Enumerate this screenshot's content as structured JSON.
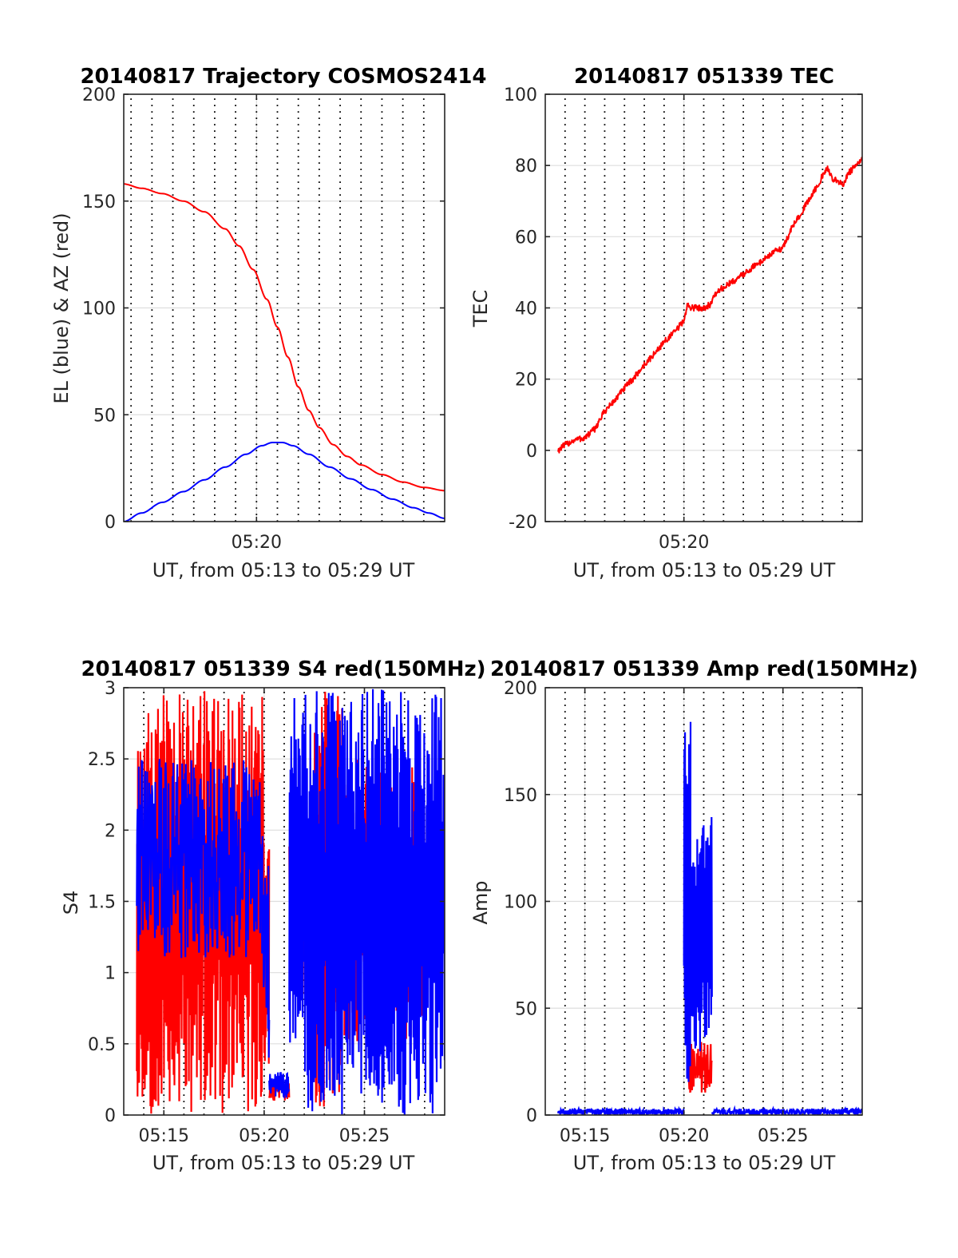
{
  "chart_data": [
    {
      "type": "line",
      "title": "20140817 Trajectory COSMOS2414",
      "xlabel": "UT, from 05:13 to 05:29 UT",
      "ylabel": "EL (blue) & AZ (red)",
      "xlim": [
        "05:13:39",
        "05:29:00"
      ],
      "ylim": [
        0,
        200
      ],
      "yticks": [
        0,
        50,
        100,
        150,
        200
      ],
      "xticks": [
        "05:20"
      ],
      "grid": true,
      "series": [
        {
          "color": "#ff0000",
          "points": [
            [
              "05:13:39",
              158
            ],
            [
              "05:14:30",
              156
            ],
            [
              "05:15:30",
              153.5
            ],
            [
              "05:16:30",
              150
            ],
            [
              "05:17:30",
              145
            ],
            [
              "05:18:30",
              137
            ],
            [
              "05:19:10",
              129
            ],
            [
              "05:19:50",
              118
            ],
            [
              "05:20:30",
              104
            ],
            [
              "05:21:00",
              91
            ],
            [
              "05:21:30",
              77
            ],
            [
              "05:22:00",
              63
            ],
            [
              "05:22:30",
              52
            ],
            [
              "05:23:00",
              44
            ],
            [
              "05:23:40",
              36
            ],
            [
              "05:24:20",
              30.5
            ],
            [
              "05:25:00",
              26.5
            ],
            [
              "05:26:00",
              22
            ],
            [
              "05:27:00",
              18.5
            ],
            [
              "05:28:00",
              16
            ],
            [
              "05:29:00",
              14.5
            ]
          ]
        },
        {
          "color": "#0000ff",
          "points": [
            [
              "05:13:39",
              0
            ],
            [
              "05:14:30",
              4
            ],
            [
              "05:15:30",
              9
            ],
            [
              "05:16:30",
              14
            ],
            [
              "05:17:30",
              19.5
            ],
            [
              "05:18:30",
              25.5
            ],
            [
              "05:19:30",
              31.5
            ],
            [
              "05:20:15",
              35.5
            ],
            [
              "05:20:45",
              37
            ],
            [
              "05:21:15",
              37
            ],
            [
              "05:21:45",
              35.5
            ],
            [
              "05:22:30",
              31.5
            ],
            [
              "05:23:30",
              25.5
            ],
            [
              "05:24:30",
              20
            ],
            [
              "05:25:30",
              15
            ],
            [
              "05:26:30",
              10.5
            ],
            [
              "05:27:30",
              6.5
            ],
            [
              "05:28:15",
              4
            ],
            [
              "05:29:00",
              1.5
            ]
          ]
        }
      ]
    },
    {
      "type": "line",
      "title": "20140817 051339 TEC",
      "xlabel": "UT, from 05:13 to 05:29 UT",
      "ylabel": "TEC",
      "xlim": [
        "05:13:00",
        "05:29:00"
      ],
      "ylim": [
        -20,
        100
      ],
      "yticks": [
        -20,
        0,
        20,
        40,
        60,
        80,
        100
      ],
      "xticks": [
        "05:20"
      ],
      "grid": true,
      "series": [
        {
          "color": "#ff0000",
          "points": [
            [
              "05:13:39",
              0
            ],
            [
              "05:14:00",
              1.5
            ],
            [
              "05:14:30",
              3
            ],
            [
              "05:15:00",
              3.5
            ],
            [
              "05:15:30",
              6
            ],
            [
              "05:16:00",
              11
            ],
            [
              "05:16:30",
              14
            ],
            [
              "05:17:00",
              17.5
            ],
            [
              "05:17:30",
              20.5
            ],
            [
              "05:18:00",
              24
            ],
            [
              "05:18:30",
              27
            ],
            [
              "05:19:00",
              30.5
            ],
            [
              "05:19:30",
              33
            ],
            [
              "05:20:00",
              36.5
            ],
            [
              "05:20:10",
              40.5
            ],
            [
              "05:20:30",
              40
            ],
            [
              "05:21:00",
              40
            ],
            [
              "05:21:20",
              41
            ],
            [
              "05:21:40",
              44.5
            ],
            [
              "05:22:30",
              47.5
            ],
            [
              "05:23:30",
              51.5
            ],
            [
              "05:24:30",
              55.5
            ],
            [
              "05:25:00",
              57
            ],
            [
              "05:25:30",
              63
            ],
            [
              "05:26:00",
              67.5
            ],
            [
              "05:26:30",
              72
            ],
            [
              "05:27:00",
              77
            ],
            [
              "05:27:15",
              79
            ],
            [
              "05:27:30",
              76.5
            ],
            [
              "05:28:00",
              74.5
            ],
            [
              "05:28:20",
              78
            ],
            [
              "05:29:00",
              81.5
            ]
          ]
        }
      ]
    },
    {
      "type": "line",
      "title": "20140817 051339 S4 red(150MHz)",
      "xlabel": "UT, from 05:13 to 05:29 UT",
      "ylabel": "S4",
      "xlim": [
        "05:13:00",
        "05:29:00"
      ],
      "ylim": [
        0,
        3
      ],
      "yticks": [
        0,
        0.5,
        1,
        1.5,
        2,
        2.5,
        3
      ],
      "xticks": [
        "05:15",
        "05:20",
        "05:25"
      ],
      "grid": true,
      "series": [
        {
          "color": "#ff0000",
          "segments": [
            {
              "from": "05:13:39",
              "to": "05:20:00",
              "min": 0,
              "max": 3
            },
            {
              "from": "05:20:00",
              "to": "05:20:15",
              "min": 0.3,
              "max": 1.9
            },
            {
              "from": "05:20:15",
              "to": "05:21:15",
              "min": 0.1,
              "max": 0.25
            },
            {
              "from": "05:21:15",
              "to": "05:22:30",
              "min": 0.8,
              "max": 2.1
            },
            {
              "from": "05:22:30",
              "to": "05:24:00",
              "min": 0,
              "max": 3
            },
            {
              "from": "05:24:00",
              "to": "05:28:00",
              "min": 0.5,
              "max": 2.5
            }
          ]
        },
        {
          "color": "#0000ff",
          "segments": [
            {
              "from": "05:13:39",
              "to": "05:19:55",
              "min": 1.1,
              "max": 2.5
            },
            {
              "from": "05:19:55",
              "to": "05:20:15",
              "min": 0.4,
              "max": 1.8
            },
            {
              "from": "05:20:15",
              "to": "05:21:15",
              "min": 0.12,
              "max": 0.3
            },
            {
              "from": "05:21:15",
              "to": "05:22:00",
              "min": 0.5,
              "max": 3
            },
            {
              "from": "05:22:00",
              "to": "05:29:00",
              "min": 0,
              "max": 3
            }
          ]
        }
      ]
    },
    {
      "type": "line",
      "title": "20140817 051339 Amp red(150MHz)",
      "xlabel": "UT, from 05:13 to 05:29 UT",
      "ylabel": "Amp",
      "xlim": [
        "05:13:00",
        "05:29:00"
      ],
      "ylim": [
        0,
        200
      ],
      "yticks": [
        0,
        50,
        100,
        150,
        200
      ],
      "xticks": [
        "05:15",
        "05:20",
        "05:25"
      ],
      "grid": true,
      "series": [
        {
          "color": "#ff0000",
          "segments": [
            {
              "from": "05:20:15",
              "to": "05:21:25",
              "min": 10,
              "max": 35
            }
          ]
        },
        {
          "color": "#0000ff",
          "segments": [
            {
              "from": "05:13:39",
              "to": "05:20:00",
              "min": 0,
              "max": 3
            },
            {
              "from": "05:20:00",
              "to": "05:20:20",
              "min": 10,
              "max": 184
            },
            {
              "from": "05:20:20",
              "to": "05:21:25",
              "min": 20,
              "max": 150
            },
            {
              "from": "05:21:25",
              "to": "05:29:00",
              "min": 0,
              "max": 3
            }
          ]
        }
      ]
    }
  ]
}
